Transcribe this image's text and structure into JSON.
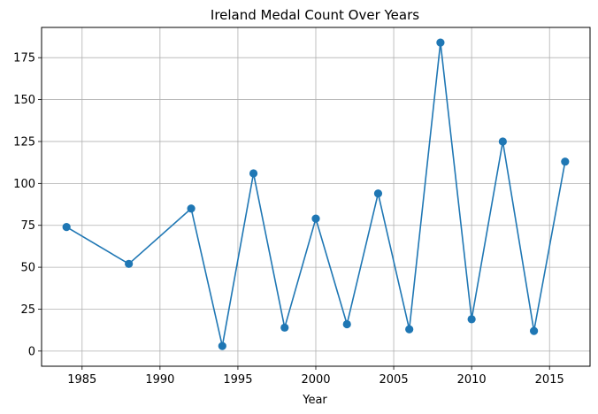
{
  "chart_data": {
    "type": "line",
    "title": "Ireland Medal Count Over Years",
    "xlabel": "Year",
    "ylabel": "",
    "x": [
      1984,
      1988,
      1992,
      1994,
      1996,
      1998,
      2000,
      2002,
      2004,
      2006,
      2008,
      2010,
      2012,
      2014,
      2016
    ],
    "series": [
      {
        "values": [
          74,
          52,
          85,
          3,
          106,
          14,
          79,
          16,
          94,
          13,
          184,
          19,
          125,
          12,
          113
        ]
      }
    ],
    "xlim": [
      1982.4,
      1987.6
    ],
    "x_range": [
      1982.4,
      1989.6
    ],
    "ylim": [
      -9.05,
      193.05
    ],
    "xticks": [
      "1985",
      "1990",
      "1995",
      "2000",
      "2005",
      "2010",
      "2015"
    ],
    "yticks": [
      "0",
      "25",
      "50",
      "75",
      "100",
      "125",
      "150",
      "175"
    ],
    "grid": true,
    "color": "#1f77b4"
  }
}
